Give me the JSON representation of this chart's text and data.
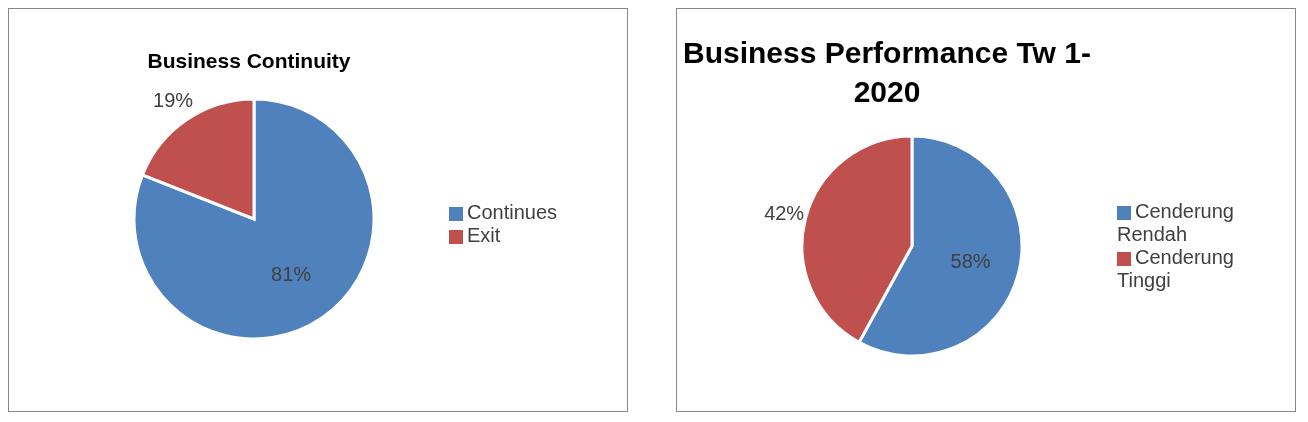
{
  "chart_data": [
    {
      "type": "pie",
      "title": "Business Continuity",
      "categories": [
        "Continues",
        "Exit"
      ],
      "values": [
        81,
        19
      ],
      "value_labels": [
        "81%",
        "19%"
      ],
      "colors": [
        "#4f81bd",
        "#c0504d"
      ],
      "legend": "right"
    },
    {
      "type": "pie",
      "title": "Business Performance Tw 1-2020",
      "categories": [
        "Cenderung Rendah",
        "Cenderung Tinggi"
      ],
      "values": [
        58,
        42
      ],
      "value_labels": [
        "58%",
        "42%"
      ],
      "colors": [
        "#4f81bd",
        "#c0504d"
      ],
      "legend": "right"
    }
  ]
}
